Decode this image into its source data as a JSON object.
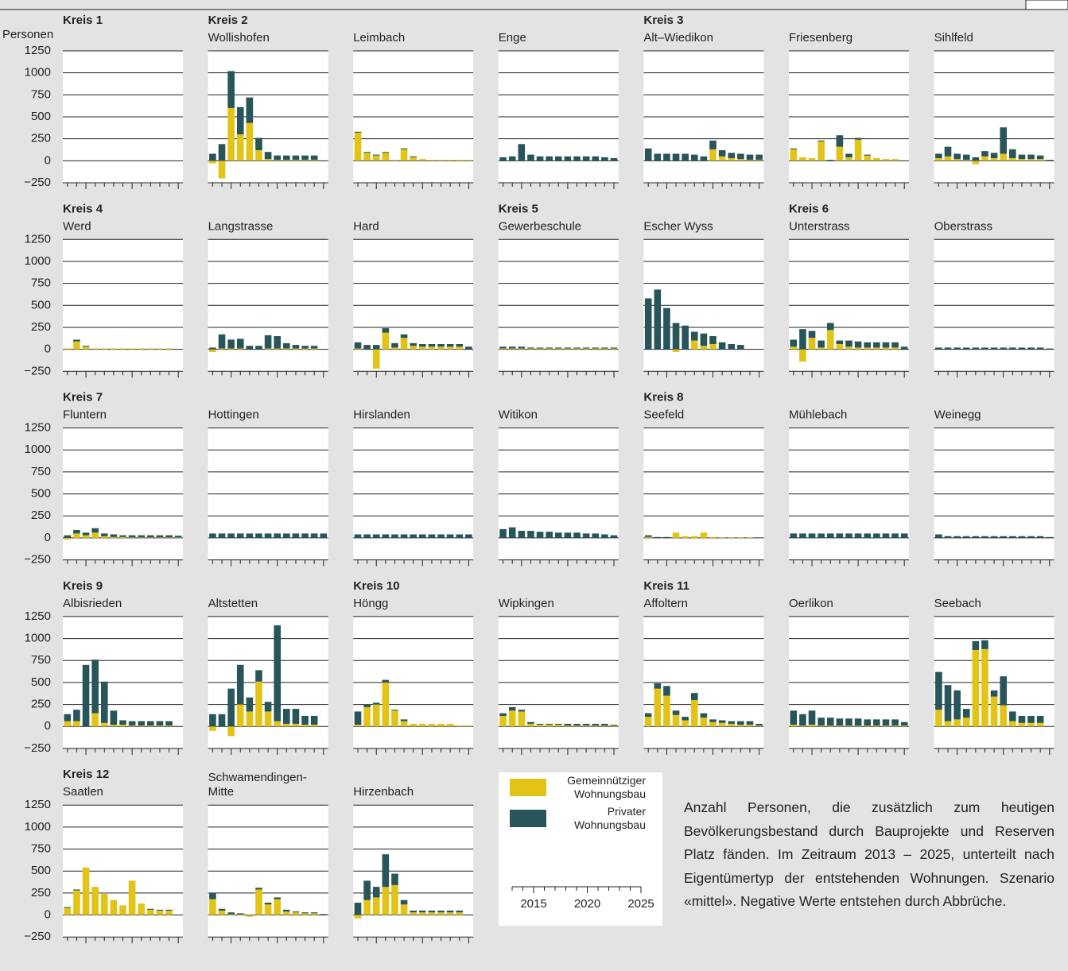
{
  "chart_data": {
    "type": "bar",
    "stacked": true,
    "ylabel": "Personen",
    "ylim": [
      -250,
      1250
    ],
    "yticks": [
      {
        "value": -250,
        "label": "−250"
      },
      0,
      250,
      500,
      750,
      1000,
      1250
    ],
    "categories": [
      2013,
      2014,
      2015,
      2016,
      2017,
      2018,
      2019,
      2020,
      2021,
      2022,
      2023,
      2024,
      2025
    ],
    "xticks": [
      2015,
      2020,
      2025
    ],
    "series": [
      {
        "name": "Gemeinnütziger Wohnungsbau",
        "color": "#e3c316"
      },
      {
        "name": "Privater Wohnungsbau",
        "color": "#275559"
      }
    ],
    "panels": [
      {
        "group": "Kreis 1",
        "values": [
          [
            null,
            null,
            null,
            null,
            null,
            null,
            null,
            null,
            null,
            null,
            null,
            null,
            null
          ],
          [
            null,
            null,
            null,
            null,
            null,
            null,
            null,
            null,
            null,
            null,
            null,
            null,
            null
          ]
        ]
      },
      {
        "group": "Kreis 2",
        "title": "Wollishofen",
        "values": [
          [
            -30,
            -200,
            600,
            300,
            430,
            120,
            20,
            10,
            10,
            10,
            10,
            10,
            0
          ],
          [
            80,
            190,
            420,
            310,
            290,
            140,
            80,
            50,
            50,
            50,
            50,
            50,
            0
          ]
        ]
      },
      {
        "title": "Leimbach",
        "values": [
          [
            320,
            90,
            60,
            90,
            10,
            130,
            40,
            20,
            10,
            10,
            10,
            10,
            10
          ],
          [
            10,
            10,
            10,
            10,
            0,
            10,
            10,
            0,
            0,
            0,
            0,
            0,
            0
          ]
        ]
      },
      {
        "title": "Enge",
        "values": [
          [
            0,
            0,
            0,
            0,
            0,
            0,
            0,
            0,
            0,
            0,
            0,
            0,
            0
          ],
          [
            40,
            50,
            190,
            70,
            50,
            50,
            50,
            50,
            50,
            50,
            50,
            40,
            30
          ]
        ]
      },
      {
        "group": "Kreis 3",
        "title": "Alt–Wiedikon",
        "values": [
          [
            0,
            0,
            0,
            0,
            0,
            0,
            0,
            130,
            50,
            30,
            20,
            10,
            10
          ],
          [
            140,
            80,
            80,
            80,
            80,
            70,
            50,
            100,
            70,
            60,
            60,
            60,
            60
          ]
        ]
      },
      {
        "title": "Friesenberg",
        "values": [
          [
            130,
            40,
            30,
            220,
            0,
            160,
            40,
            240,
            60,
            30,
            20,
            20,
            0
          ],
          [
            10,
            0,
            0,
            10,
            10,
            130,
            40,
            20,
            10,
            0,
            0,
            0,
            0
          ]
        ]
      },
      {
        "title": "Sihlfeld",
        "values": [
          [
            30,
            50,
            20,
            10,
            -40,
            50,
            30,
            80,
            30,
            20,
            20,
            20,
            0
          ],
          [
            50,
            110,
            60,
            60,
            40,
            60,
            60,
            300,
            100,
            50,
            50,
            40,
            10
          ]
        ]
      },
      {
        "group": "Kreis 4",
        "title": "Werd",
        "values": [
          [
            10,
            90,
            30,
            10,
            10,
            10,
            10,
            10,
            10,
            10,
            10,
            10,
            0
          ],
          [
            0,
            20,
            10,
            0,
            0,
            0,
            0,
            0,
            0,
            0,
            0,
            0,
            0
          ]
        ]
      },
      {
        "title": "Langstrasse",
        "values": [
          [
            -30,
            10,
            10,
            10,
            0,
            0,
            10,
            10,
            10,
            10,
            10,
            10,
            0
          ],
          [
            20,
            160,
            100,
            110,
            40,
            40,
            150,
            140,
            60,
            40,
            30,
            30,
            0
          ]
        ]
      },
      {
        "title": "Hard",
        "values": [
          [
            10,
            0,
            -220,
            190,
            20,
            130,
            40,
            30,
            30,
            30,
            30,
            30,
            0
          ],
          [
            70,
            50,
            50,
            50,
            50,
            40,
            30,
            30,
            30,
            30,
            30,
            30,
            30
          ]
        ]
      },
      {
        "group": "Kreis 5",
        "title": "Gewerbeschule",
        "values": [
          [
            10,
            10,
            10,
            10,
            10,
            10,
            10,
            10,
            10,
            10,
            10,
            10,
            10
          ],
          [
            20,
            20,
            20,
            10,
            10,
            10,
            10,
            10,
            10,
            10,
            10,
            10,
            10
          ]
        ]
      },
      {
        "title": "Escher Wyss",
        "values": [
          [
            0,
            0,
            0,
            -30,
            0,
            100,
            40,
            60,
            0,
            0,
            0,
            0,
            0
          ],
          [
            580,
            680,
            470,
            300,
            270,
            100,
            140,
            90,
            80,
            60,
            50,
            0,
            0
          ]
        ]
      },
      {
        "group": "Kreis 6",
        "title": "Unterstrass",
        "values": [
          [
            30,
            -140,
            130,
            20,
            220,
            60,
            30,
            20,
            20,
            20,
            20,
            20,
            0
          ],
          [
            80,
            230,
            80,
            80,
            80,
            40,
            70,
            70,
            60,
            60,
            60,
            60,
            30
          ]
        ]
      },
      {
        "title": "Oberstrass",
        "values": [
          [
            0,
            0,
            0,
            0,
            0,
            0,
            0,
            0,
            0,
            0,
            0,
            0,
            0
          ],
          [
            20,
            20,
            20,
            20,
            20,
            20,
            20,
            20,
            20,
            20,
            20,
            20,
            10
          ]
        ]
      },
      {
        "group": "Kreis 7",
        "title": "Fluntern",
        "values": [
          [
            -20,
            50,
            30,
            60,
            20,
            10,
            10,
            5,
            5,
            5,
            5,
            5,
            5
          ],
          [
            30,
            40,
            30,
            50,
            30,
            30,
            20,
            25,
            25,
            25,
            25,
            25,
            20
          ]
        ]
      },
      {
        "title": "Hottingen",
        "values": [
          [
            0,
            0,
            0,
            0,
            0,
            0,
            0,
            0,
            0,
            0,
            0,
            0,
            0
          ],
          [
            50,
            50,
            50,
            50,
            50,
            50,
            50,
            50,
            50,
            50,
            50,
            50,
            50
          ]
        ]
      },
      {
        "title": "Hirslanden",
        "values": [
          [
            0,
            0,
            0,
            0,
            0,
            0,
            0,
            0,
            0,
            0,
            0,
            0,
            0
          ],
          [
            40,
            40,
            40,
            40,
            40,
            40,
            40,
            40,
            40,
            40,
            40,
            40,
            40
          ]
        ]
      },
      {
        "title": "Witikon",
        "values": [
          [
            0,
            0,
            0,
            0,
            0,
            0,
            0,
            0,
            0,
            0,
            0,
            0,
            0
          ],
          [
            100,
            120,
            80,
            80,
            70,
            70,
            60,
            60,
            60,
            50,
            50,
            40,
            30
          ]
        ]
      },
      {
        "group": "Kreis 8",
        "title": "Seefeld",
        "values": [
          [
            10,
            0,
            0,
            60,
            20,
            20,
            60,
            10,
            5,
            5,
            5,
            5,
            0
          ],
          [
            20,
            10,
            10,
            0,
            0,
            0,
            0,
            0,
            0,
            0,
            0,
            0,
            0
          ]
        ]
      },
      {
        "title": "Mühlebach",
        "values": [
          [
            0,
            0,
            0,
            0,
            0,
            0,
            0,
            0,
            0,
            0,
            0,
            0,
            0
          ],
          [
            50,
            50,
            50,
            50,
            50,
            50,
            50,
            50,
            50,
            50,
            50,
            50,
            50
          ]
        ]
      },
      {
        "title": "Weinegg",
        "values": [
          [
            0,
            0,
            0,
            0,
            0,
            0,
            0,
            0,
            0,
            0,
            0,
            0,
            0
          ],
          [
            40,
            20,
            20,
            20,
            20,
            20,
            20,
            20,
            20,
            20,
            20,
            20,
            10
          ]
        ]
      },
      {
        "group": "Kreis 9",
        "title": "Albisrieden",
        "values": [
          [
            60,
            60,
            0,
            150,
            40,
            20,
            20,
            10,
            10,
            10,
            10,
            10,
            0
          ],
          [
            80,
            130,
            700,
            610,
            470,
            160,
            50,
            50,
            50,
            50,
            50,
            50,
            0
          ]
        ]
      },
      {
        "title": "Altstetten",
        "values": [
          [
            -50,
            0,
            -110,
            250,
            170,
            510,
            170,
            60,
            30,
            30,
            20,
            20,
            0
          ],
          [
            140,
            140,
            430,
            450,
            160,
            130,
            110,
            1090,
            170,
            170,
            100,
            100,
            0
          ]
        ]
      },
      {
        "group": "Kreis 10",
        "title": "Höngg",
        "values": [
          [
            20,
            220,
            250,
            500,
            180,
            60,
            30,
            30,
            30,
            30,
            30,
            10,
            10
          ],
          [
            150,
            30,
            20,
            30,
            10,
            20,
            0,
            0,
            0,
            0,
            0,
            0,
            0
          ]
        ]
      },
      {
        "title": "Wipkingen",
        "values": [
          [
            120,
            180,
            170,
            30,
            20,
            20,
            20,
            10,
            10,
            10,
            10,
            10,
            10
          ],
          [
            30,
            40,
            20,
            20,
            10,
            10,
            10,
            20,
            20,
            20,
            20,
            20,
            10
          ]
        ]
      },
      {
        "group": "Kreis 11",
        "title": "Affoltern",
        "values": [
          [
            110,
            430,
            350,
            130,
            70,
            300,
            100,
            50,
            40,
            30,
            20,
            20,
            10
          ],
          [
            40,
            60,
            110,
            50,
            40,
            80,
            50,
            30,
            30,
            30,
            40,
            40,
            20
          ]
        ]
      },
      {
        "title": "Oerlikon",
        "values": [
          [
            20,
            10,
            20,
            10,
            10,
            10,
            10,
            10,
            10,
            10,
            10,
            10,
            10
          ],
          [
            160,
            130,
            160,
            90,
            90,
            80,
            80,
            80,
            70,
            70,
            70,
            70,
            40
          ]
        ]
      },
      {
        "title": "Seebach",
        "values": [
          [
            190,
            60,
            80,
            100,
            870,
            880,
            340,
            240,
            60,
            40,
            40,
            40,
            0
          ],
          [
            430,
            410,
            330,
            100,
            100,
            100,
            70,
            330,
            110,
            80,
            80,
            80,
            0
          ]
        ]
      },
      {
        "group": "Kreis 12",
        "title": "Saatlen",
        "values": [
          [
            80,
            280,
            540,
            320,
            240,
            170,
            110,
            390,
            130,
            60,
            50,
            50,
            0
          ],
          [
            10,
            10,
            0,
            0,
            0,
            0,
            0,
            0,
            0,
            10,
            10,
            10,
            0
          ]
        ]
      },
      {
        "title": "Schwamendingen-\nMitte",
        "values": [
          [
            180,
            50,
            10,
            10,
            -20,
            290,
            120,
            180,
            40,
            30,
            20,
            20,
            0
          ],
          [
            70,
            20,
            20,
            10,
            0,
            20,
            20,
            20,
            20,
            10,
            10,
            10,
            10
          ]
        ]
      },
      {
        "title": "Hirzenbach",
        "values": [
          [
            -40,
            170,
            200,
            320,
            340,
            120,
            30,
            30,
            30,
            30,
            30,
            30,
            0
          ],
          [
            140,
            220,
            120,
            370,
            130,
            50,
            20,
            20,
            20,
            20,
            20,
            20,
            0
          ]
        ]
      }
    ],
    "note": "Anzahl Personen, die zusätzlich zum heutigen Bevölkerungsbestand durch Bauprojekte und Reserven Platz fänden. Im Zeitraum 2013 – 2025, unterteilt nach Eigentümertyp der entstehen­den Wohnungen. Szenario «mittel». Negative Werte entstehen durch Abbrüche."
  }
}
